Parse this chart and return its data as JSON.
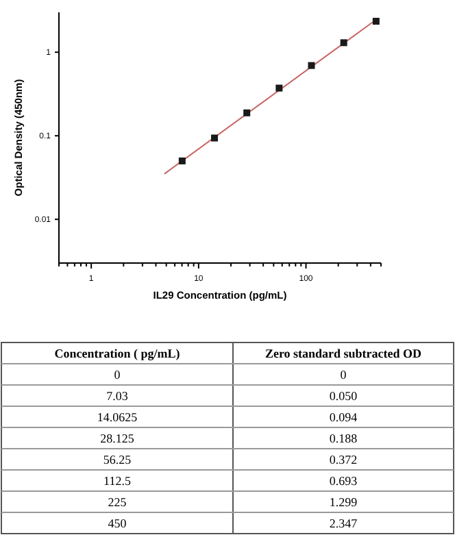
{
  "chart_data": [
    {
      "type": "scatter",
      "xlabel": "IL29 Concentration (pg/mL)",
      "ylabel": "Optical Density (450nm)",
      "log": "xy",
      "xlim": [
        0.5,
        500
      ],
      "ylim": [
        0.003,
        3
      ],
      "xticks": [
        {
          "value": 0.5,
          "label": null
        },
        {
          "value": 0.6,
          "label": null
        },
        {
          "value": 0.7,
          "label": null
        },
        {
          "value": 0.8,
          "label": null
        },
        {
          "value": 0.9,
          "label": null
        },
        1,
        {
          "value": 2,
          "label": null
        },
        {
          "value": 3,
          "label": null
        },
        {
          "value": 4,
          "label": null
        },
        {
          "value": 5,
          "label": null
        },
        {
          "value": 6,
          "label": null
        },
        {
          "value": 7,
          "label": null
        },
        {
          "value": 8,
          "label": null
        },
        {
          "value": 9,
          "label": null
        },
        10,
        {
          "value": 20,
          "label": null
        },
        {
          "value": 30,
          "label": null
        },
        {
          "value": 40,
          "label": null
        },
        {
          "value": 50,
          "label": null
        },
        {
          "value": 60,
          "label": null
        },
        {
          "value": 70,
          "label": null
        },
        {
          "value": 80,
          "label": null
        },
        {
          "value": 90,
          "label": null
        },
        100,
        {
          "value": 200,
          "label": null
        },
        {
          "value": 300,
          "label": null
        },
        {
          "value": 400,
          "label": null
        },
        {
          "value": 500,
          "label": null
        }
      ],
      "yticks": [
        0.01,
        0.1,
        1
      ],
      "series": [
        {
          "type": "line",
          "color": "#c86464",
          "marker": "none",
          "line_style": "solid",
          "x": [
            4.8,
            450
          ],
          "values": [
            0.035,
            2.45
          ]
        },
        {
          "type": "scatter",
          "color": "#1a1a1a",
          "marker": "square",
          "x": [
            7.03,
            14.0625,
            28.125,
            56.25,
            112.5,
            225,
            450
          ],
          "values": [
            0.05,
            0.094,
            0.188,
            0.372,
            0.693,
            1.299,
            2.347
          ]
        }
      ]
    },
    {
      "type": "other",
      "annotations": [
        "Concentration ( pg/mL)",
        "Zero standard subtracted OD",
        "0",
        "0",
        "7.03",
        "0.050",
        "14.0625",
        "0.094",
        "28.125",
        "0.188",
        "56.25",
        "0.372",
        "112.5",
        "0.693",
        "225",
        "1.299",
        "450",
        "2.347"
      ]
    }
  ]
}
